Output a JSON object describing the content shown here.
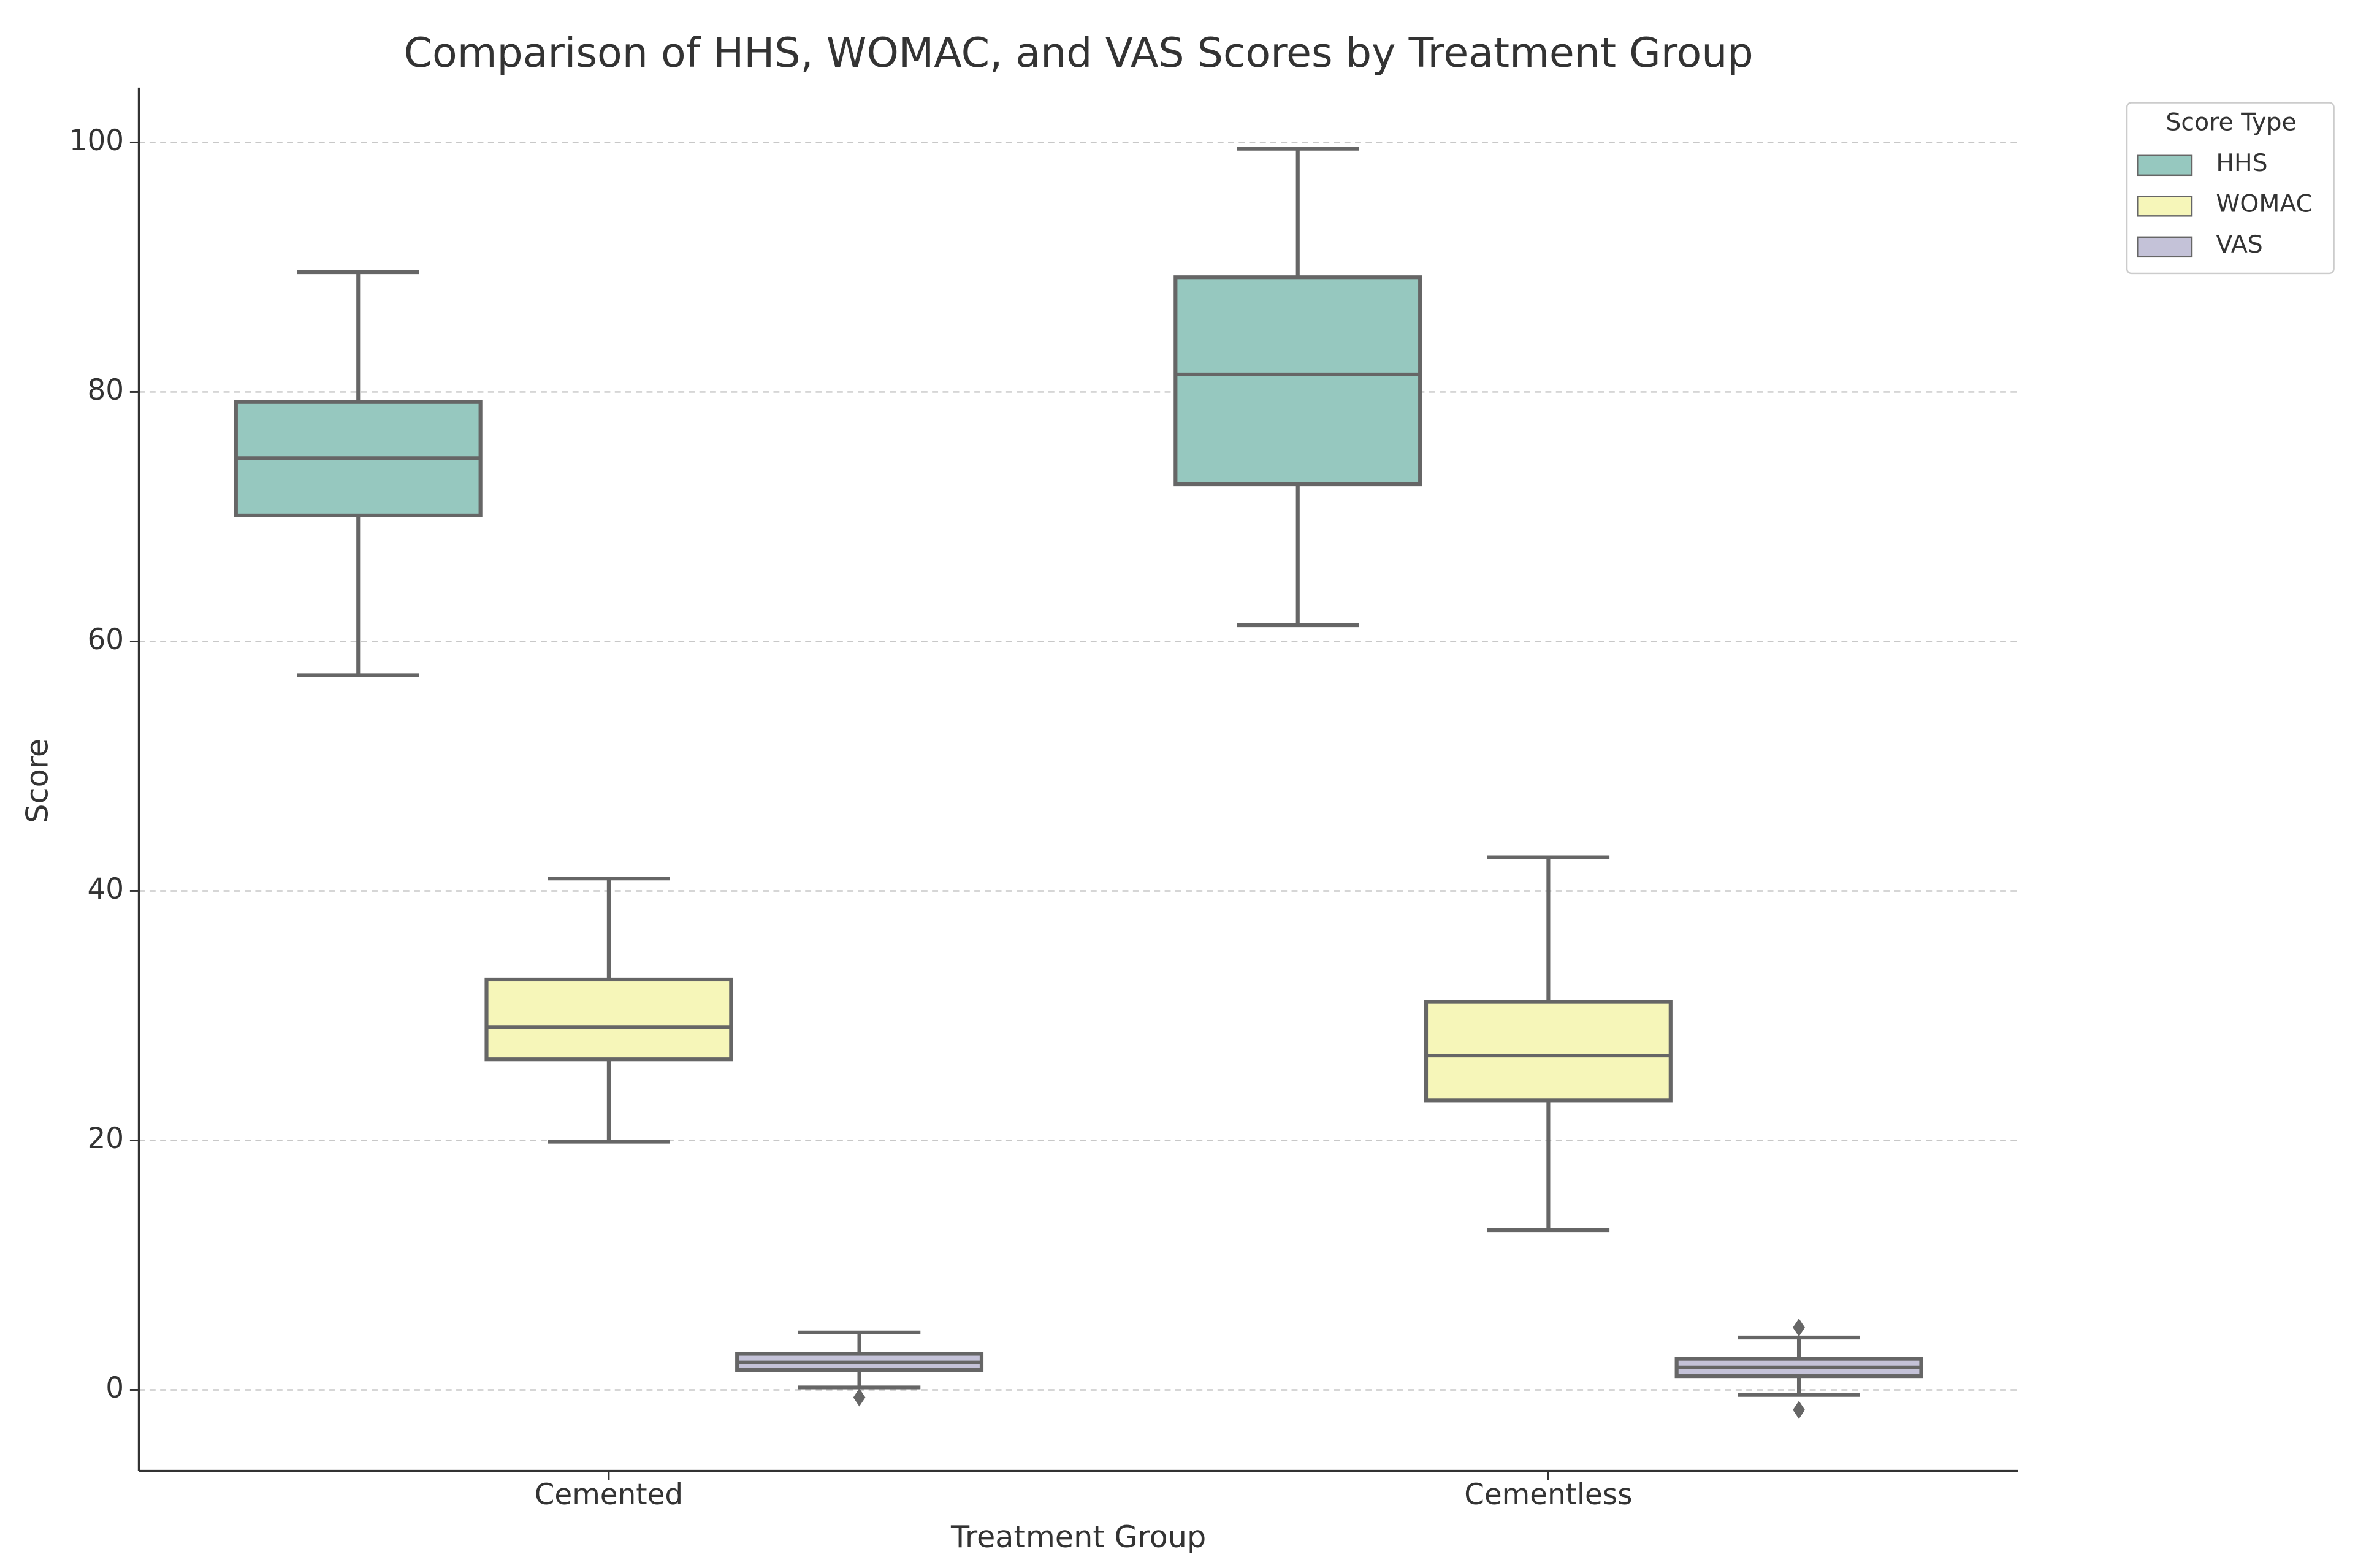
{
  "chart_data": {
    "type": "box",
    "title": "Comparison of HHS, WOMAC, and VAS Scores by Treatment Group",
    "x_label": "Treatment Group",
    "y_label": "Score",
    "categories": [
      "Cemented",
      "Cementless"
    ],
    "ylim": [
      -6.5,
      104.4
    ],
    "yticks": [
      0,
      20,
      40,
      60,
      80,
      100
    ],
    "grid": true,
    "legend_title": "Score Type",
    "legend_position": "outside-upper-right",
    "series": [
      {
        "name": "HHS",
        "color": "#96c8bf",
        "boxes": [
          {
            "min": 57.3,
            "q1": 70.1,
            "median": 74.7,
            "q3": 79.2,
            "max": 89.6,
            "outliers": []
          },
          {
            "min": 61.3,
            "q1": 72.6,
            "median": 81.4,
            "q3": 89.2,
            "max": 99.5,
            "outliers": []
          }
        ]
      },
      {
        "name": "WOMAC",
        "color": "#f6f6b9",
        "boxes": [
          {
            "min": 19.9,
            "q1": 26.5,
            "median": 29.1,
            "q3": 32.9,
            "max": 41.0,
            "outliers": []
          },
          {
            "min": 12.8,
            "q1": 23.2,
            "median": 26.8,
            "q3": 31.1,
            "max": 42.7,
            "outliers": []
          }
        ]
      },
      {
        "name": "VAS",
        "color": "#c4c2d8",
        "boxes": [
          {
            "min": 0.2,
            "q1": 1.6,
            "median": 2.2,
            "q3": 2.9,
            "max": 4.6,
            "outliers": [
              -0.6
            ]
          },
          {
            "min": -0.4,
            "q1": 1.1,
            "median": 1.8,
            "q3": 2.5,
            "max": 4.2,
            "outliers": [
              5.0,
              -1.6
            ]
          }
        ]
      }
    ]
  }
}
